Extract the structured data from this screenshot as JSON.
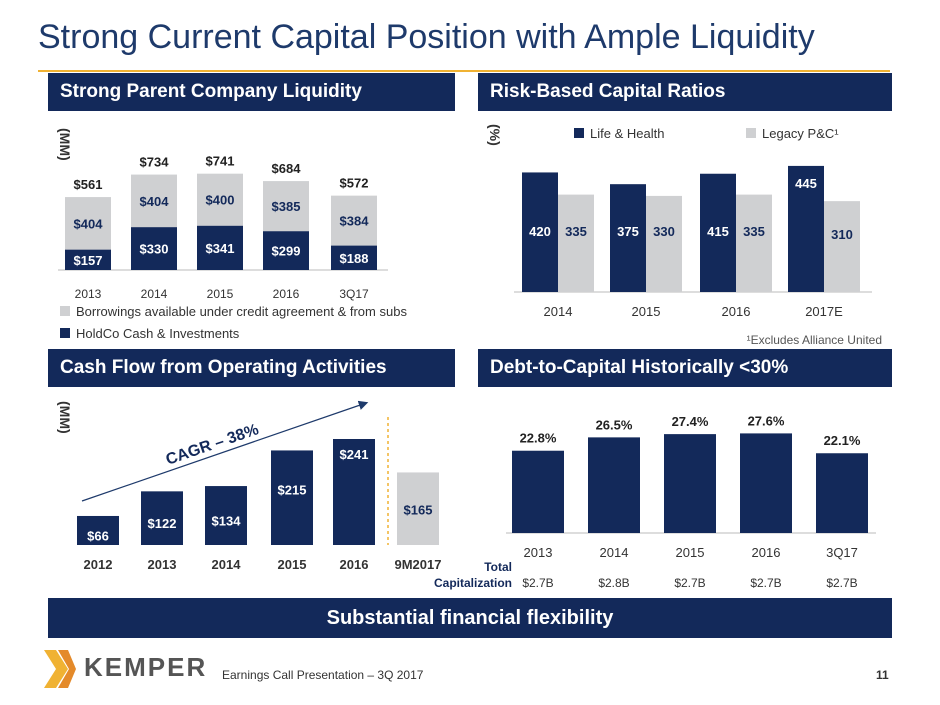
{
  "title": "Strong Current Capital Position with Ample Liquidity",
  "colors": {
    "navy": "#13295a",
    "gray": "#cfd0d2",
    "gold": "#f0b233",
    "title": "#1e3a6b"
  },
  "sections": {
    "liquidity": "Strong Parent Company Liquidity",
    "rbc": "Risk-Based Capital Ratios",
    "cashflow": "Cash Flow from Operating Activities",
    "debt": "Debt-to-Capital Historically <30%"
  },
  "bottom_banner": "Substantial financial flexibility",
  "footer": {
    "text": "Earnings Call Presentation – 3Q 2017",
    "page": "11",
    "logo": "KEMPER",
    "logo_icon": "kemper-chevron-icon"
  },
  "chart_data": [
    {
      "id": "liquidity",
      "type": "bar",
      "stacked": true,
      "ylabel": "(MM)",
      "categories": [
        "2013",
        "2014",
        "2015",
        "2016",
        "3Q17"
      ],
      "series": [
        {
          "name": "HoldCo Cash & Investments",
          "values": [
            157,
            330,
            341,
            299,
            188
          ],
          "labels": [
            "$157",
            "$330",
            "$341",
            "$299",
            "$188"
          ]
        },
        {
          "name": "Borrowings available under credit agreement & from subs",
          "values": [
            404,
            404,
            400,
            385,
            384
          ],
          "labels": [
            "$404",
            "$404",
            "$400",
            "$385",
            "$384"
          ]
        }
      ],
      "totals": [
        "$561",
        "$734",
        "$741",
        "$684",
        "$572"
      ],
      "ylim": [
        0,
        800
      ]
    },
    {
      "id": "rbc",
      "type": "bar",
      "ylabel": "(%)",
      "categories": [
        "2014",
        "2015",
        "2016",
        "2017E"
      ],
      "series": [
        {
          "name": "Life & Health",
          "values": [
            420,
            375,
            415,
            445
          ]
        },
        {
          "name": "Legacy P&C¹",
          "values": [
            335,
            330,
            335,
            310
          ]
        }
      ],
      "ylim": [
        0,
        460
      ],
      "footnote": "¹Excludes Alliance United"
    },
    {
      "id": "cashflow",
      "type": "bar",
      "ylabel": "(MM)",
      "categories": [
        "2012",
        "2013",
        "2014",
        "2015",
        "2016",
        "9M2017"
      ],
      "values": [
        66,
        122,
        134,
        215,
        241,
        165
      ],
      "labels": [
        "$66",
        "$122",
        "$134",
        "$215",
        "$241",
        "$165"
      ],
      "annotation": "CAGR – 38%",
      "ylim": [
        0,
        260
      ]
    },
    {
      "id": "debt",
      "type": "bar",
      "categories": [
        "2013",
        "2014",
        "2015",
        "2016",
        "3Q17"
      ],
      "values": [
        22.8,
        26.5,
        27.4,
        27.6,
        22.1
      ],
      "labels": [
        "22.8%",
        "26.5%",
        "27.4%",
        "27.6%",
        "22.1%"
      ],
      "ylim": [
        0,
        28
      ],
      "total_cap_label": [
        "Total",
        "Capitalization"
      ],
      "total_cap": [
        "$2.7B",
        "$2.8B",
        "$2.7B",
        "$2.7B",
        "$2.7B"
      ]
    }
  ]
}
